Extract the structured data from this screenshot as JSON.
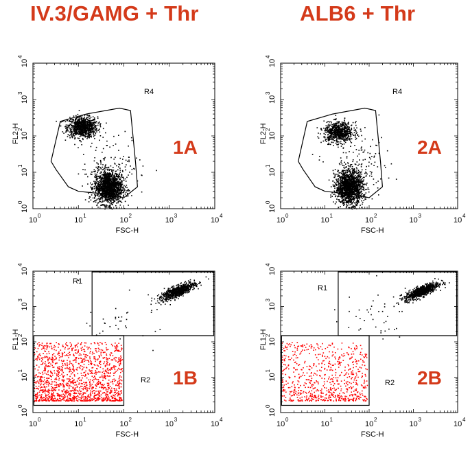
{
  "colors": {
    "title": "#d43a1a",
    "panel_label": "#d43a1a",
    "gated_events": "#ff0000",
    "events": "#000000"
  },
  "column_titles": [
    "IV.3/GAMG + Thr",
    "ALB6 + Thr"
  ],
  "chart_data": [
    {
      "id": "1A",
      "type": "scatter",
      "panel_label": "1A",
      "xlabel": "FSC-H",
      "ylabel": "FL2-H",
      "xscale": "log",
      "yscale": "log",
      "xlim": [
        1,
        10000
      ],
      "ylim": [
        1,
        10000
      ],
      "x_ticks": [
        "10",
        "10",
        "10",
        "10",
        "10"
      ],
      "x_tick_exps": [
        "0",
        "1",
        "2",
        "3",
        "4"
      ],
      "y_ticks": [
        "10",
        "10",
        "10",
        "10",
        "10"
      ],
      "y_tick_exps": [
        "0",
        "1",
        "2",
        "3",
        "4"
      ],
      "series": [
        {
          "count": 900,
          "color": "#000000",
          "clusters": [
            {
              "x": [
                12,
                2.0
              ],
              "y": [
                180,
                1.8
              ],
              "w": 1
            }
          ]
        },
        {
          "count": 1500,
          "color": "#000000",
          "clusters": [
            {
              "x": [
                45,
                1.9
              ],
              "y": [
                4,
                2.6
              ],
              "w": 1
            }
          ]
        },
        {
          "count": 130,
          "color": "#000000",
          "clusters": [
            {
              "x": [
                60,
                4.5
              ],
              "y": [
                15,
                6
              ],
              "w": 1
            }
          ]
        }
      ],
      "gates": [
        {
          "label": "R4",
          "shape": "polygon",
          "points": [
            [
              2.5,
              20
            ],
            [
              3.2,
              12
            ],
            [
              6,
              4
            ],
            [
              10,
              3
            ],
            [
              40,
              2.5
            ],
            [
              100,
              2
            ],
            [
              200,
              4
            ],
            [
              180,
              20
            ],
            [
              140,
              500
            ],
            [
              80,
              580
            ],
            [
              15,
              400
            ],
            [
              4,
              250
            ]
          ]
        }
      ]
    },
    {
      "id": "2A",
      "type": "scatter",
      "panel_label": "2A",
      "xlabel": "FSC-H",
      "ylabel": "FL2-H",
      "xscale": "log",
      "yscale": "log",
      "xlim": [
        1,
        10000
      ],
      "ylim": [
        1,
        10000
      ],
      "x_ticks": [
        "10",
        "10",
        "10",
        "10",
        "10"
      ],
      "x_tick_exps": [
        "0",
        "1",
        "2",
        "3",
        "4"
      ],
      "y_ticks": [
        "10",
        "10",
        "10",
        "10",
        "10"
      ],
      "y_tick_exps": [
        "0",
        "1",
        "2",
        "3",
        "4"
      ],
      "series": [
        {
          "count": 700,
          "color": "#000000",
          "clusters": [
            {
              "x": [
                20,
                2.0
              ],
              "y": [
                130,
                1.8
              ],
              "w": 1
            }
          ]
        },
        {
          "count": 1500,
          "color": "#000000",
          "clusters": [
            {
              "x": [
                35,
                1.9
              ],
              "y": [
                4,
                2.6
              ],
              "w": 1
            }
          ]
        },
        {
          "count": 130,
          "color": "#000000",
          "clusters": [
            {
              "x": [
                60,
                4.5
              ],
              "y": [
                15,
                6
              ],
              "w": 1
            }
          ]
        }
      ],
      "gates": [
        {
          "label": "R4",
          "shape": "polygon",
          "points": [
            [
              2.5,
              20
            ],
            [
              3.2,
              12
            ],
            [
              6,
              4
            ],
            [
              10,
              3
            ],
            [
              40,
              2.5
            ],
            [
              100,
              2
            ],
            [
              200,
              4
            ],
            [
              180,
              20
            ],
            [
              140,
              500
            ],
            [
              80,
              580
            ],
            [
              15,
              400
            ],
            [
              4,
              250
            ]
          ]
        }
      ]
    },
    {
      "id": "1B",
      "type": "scatter",
      "panel_label": "1B",
      "xlabel": "FSC-H",
      "ylabel": "FL1-H",
      "xscale": "log",
      "yscale": "log",
      "xlim": [
        1,
        10000
      ],
      "ylim": [
        1,
        10000
      ],
      "x_ticks": [
        "10",
        "10",
        "10",
        "10",
        "10"
      ],
      "x_tick_exps": [
        "0",
        "1",
        "2",
        "3",
        "4"
      ],
      "y_ticks": [
        "10",
        "10",
        "10",
        "10",
        "10"
      ],
      "y_tick_exps": [
        "0",
        "1",
        "2",
        "3",
        "4"
      ],
      "series": [
        {
          "count": 800,
          "color": "#000000",
          "diag": true,
          "clusters": [
            {
              "x": [
                1500,
                2.2
              ],
              "y": [
                2800,
                1.7
              ],
              "w": 1
            }
          ]
        },
        {
          "count": 40,
          "color": "#000000",
          "clusters": [
            {
              "x": [
                100,
                6
              ],
              "y": [
                500,
                4
              ],
              "w": 1
            }
          ]
        },
        {
          "count": 1400,
          "color": "#ff0000",
          "uniform": true,
          "clusters": [
            {
              "x": [
                1.05,
                90
              ],
              "y": [
                2.2,
                100
              ],
              "w": 1
            }
          ]
        }
      ],
      "gates": [
        {
          "label": "R1",
          "shape": "rect",
          "x": [
            20,
            9500
          ],
          "y": [
            150,
            9500
          ]
        },
        {
          "label": "R2",
          "shape": "rect",
          "x": [
            1.05,
            100
          ],
          "y": [
            1.6,
            150
          ]
        }
      ]
    },
    {
      "id": "2B",
      "type": "scatter",
      "panel_label": "2B",
      "xlabel": "FSC-H",
      "ylabel": "FL1-H",
      "xscale": "log",
      "yscale": "log",
      "xlim": [
        1,
        10000
      ],
      "ylim": [
        1,
        10000
      ],
      "x_ticks": [
        "10",
        "10",
        "10",
        "10",
        "10"
      ],
      "x_tick_exps": [
        "0",
        "1",
        "2",
        "3",
        "4"
      ],
      "y_ticks": [
        "10",
        "10",
        "10",
        "10",
        "10"
      ],
      "y_tick_exps": [
        "0",
        "1",
        "2",
        "3",
        "4"
      ],
      "series": [
        {
          "count": 750,
          "color": "#000000",
          "diag": true,
          "clusters": [
            {
              "x": [
                1500,
                2.2
              ],
              "y": [
                2800,
                1.7
              ],
              "w": 1
            }
          ]
        },
        {
          "count": 40,
          "color": "#000000",
          "clusters": [
            {
              "x": [
                100,
                6
              ],
              "y": [
                500,
                4
              ],
              "w": 1
            }
          ]
        },
        {
          "count": 700,
          "color": "#ff0000",
          "uniform": true,
          "clusters": [
            {
              "x": [
                1.05,
                90
              ],
              "y": [
                2.2,
                100
              ],
              "w": 1
            }
          ]
        }
      ],
      "gates": [
        {
          "label": "R1",
          "shape": "rect",
          "x": [
            20,
            9500
          ],
          "y": [
            150,
            9500
          ]
        },
        {
          "label": "R2",
          "shape": "rect",
          "x": [
            1.05,
            100
          ],
          "y": [
            1.6,
            150
          ]
        }
      ]
    }
  ]
}
